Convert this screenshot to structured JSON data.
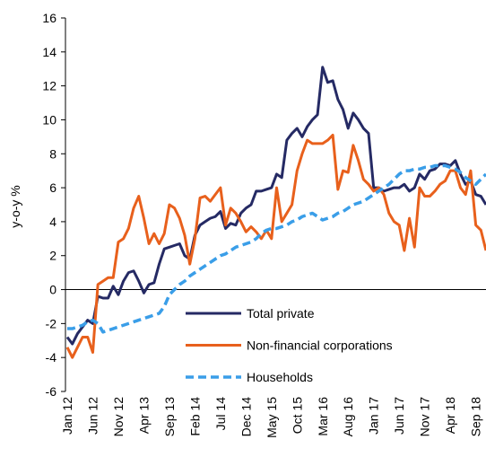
{
  "chart_data": {
    "type": "line",
    "y_label": "y-o-y %",
    "categories": [
      "Jan 12",
      null,
      null,
      null,
      null,
      "Jun 12",
      null,
      null,
      null,
      null,
      "Nov 12",
      null,
      null,
      null,
      null,
      "Apr 13",
      null,
      null,
      null,
      null,
      "Sep 13",
      null,
      null,
      null,
      null,
      "Feb 14",
      null,
      null,
      null,
      null,
      "Jul 14",
      null,
      null,
      null,
      null,
      "Dec 14",
      null,
      null,
      null,
      null,
      "May 15",
      null,
      null,
      null,
      null,
      "Oct 15",
      null,
      null,
      null,
      null,
      "Mar 16",
      null,
      null,
      null,
      null,
      "Aug 16",
      null,
      null,
      null,
      null,
      "Jan 17",
      null,
      null,
      null,
      null,
      "Jun 17",
      null,
      null,
      null,
      null,
      "Nov 17",
      null,
      null,
      null,
      null,
      "Apr 18",
      null,
      null,
      null,
      null,
      "Sep 18",
      null,
      null
    ],
    "series": [
      {
        "name": "Total private",
        "color": "#252a64",
        "dash": false,
        "values": [
          -2.8,
          -3.2,
          -2.6,
          -2.2,
          -1.8,
          -2.0,
          -0.4,
          -0.5,
          -0.5,
          0.2,
          -0.3,
          0.5,
          1.0,
          1.1,
          0.5,
          -0.2,
          0.3,
          0.4,
          1.5,
          2.4,
          2.5,
          2.6,
          2.7,
          2.0,
          1.8,
          3.2,
          3.8,
          4.0,
          4.2,
          4.3,
          4.6,
          3.6,
          3.9,
          3.8,
          4.5,
          4.8,
          5.0,
          5.8,
          5.8,
          5.9,
          6.0,
          6.8,
          6.6,
          8.8,
          9.2,
          9.5,
          9.0,
          9.6,
          10.0,
          10.3,
          13.1,
          12.2,
          12.3,
          11.2,
          10.6,
          9.5,
          10.4,
          10.0,
          9.5,
          9.2,
          6.0,
          6.0,
          5.8,
          5.9,
          6.0,
          6.0,
          6.2,
          5.8,
          6.0,
          6.8,
          6.5,
          7.0,
          7.1,
          7.4,
          7.4,
          7.3,
          7.6,
          6.8,
          6.2,
          6.4,
          5.6,
          5.5,
          5.0
        ]
      },
      {
        "name": "Non-financial corporations",
        "color": "#e8601c",
        "dash": false,
        "values": [
          -3.4,
          -4.0,
          -3.4,
          -2.8,
          -2.8,
          -3.7,
          0.3,
          0.5,
          0.7,
          0.7,
          2.8,
          3.0,
          3.6,
          4.8,
          5.5,
          4.2,
          2.7,
          3.3,
          2.7,
          3.3,
          5.0,
          4.8,
          4.2,
          3.2,
          1.5,
          3.0,
          5.4,
          5.5,
          5.2,
          5.6,
          6.0,
          3.8,
          4.8,
          4.5,
          4.0,
          3.4,
          3.7,
          3.4,
          3.0,
          3.5,
          3.0,
          6.0,
          4.0,
          4.5,
          5.0,
          7.0,
          8.0,
          8.8,
          8.6,
          8.6,
          8.6,
          8.8,
          9.1,
          5.9,
          7.0,
          6.9,
          8.5,
          7.6,
          6.5,
          6.2,
          5.8,
          6.0,
          5.6,
          4.5,
          4.0,
          3.8,
          2.3,
          4.2,
          2.5,
          6.0,
          5.5,
          5.5,
          5.8,
          6.2,
          6.4,
          7.0,
          7.0,
          6.0,
          5.6,
          7.0,
          3.8,
          3.5,
          2.3
        ]
      },
      {
        "name": "Households",
        "color": "#3a9ee8",
        "dash": true,
        "values": [
          -2.3,
          -2.3,
          -2.2,
          -2.1,
          -1.9,
          -1.8,
          -2.0,
          -2.5,
          -2.4,
          -2.3,
          -2.2,
          -2.1,
          -2.0,
          -1.9,
          -1.8,
          -1.7,
          -1.6,
          -1.5,
          -1.4,
          -1.0,
          -0.3,
          0.0,
          0.3,
          0.5,
          0.8,
          1.0,
          1.2,
          1.4,
          1.6,
          1.8,
          2.0,
          2.1,
          2.3,
          2.5,
          2.6,
          2.7,
          2.8,
          3.0,
          3.3,
          3.5,
          3.6,
          3.6,
          3.7,
          3.8,
          4.0,
          4.1,
          4.3,
          4.4,
          4.5,
          4.3,
          4.1,
          4.2,
          4.3,
          4.5,
          4.6,
          4.8,
          5.0,
          5.1,
          5.2,
          5.4,
          5.6,
          5.8,
          6.0,
          6.2,
          6.5,
          6.8,
          7.0,
          7.0,
          7.1,
          7.1,
          7.2,
          7.2,
          7.3,
          7.3,
          7.3,
          7.2,
          7.1,
          6.9,
          6.6,
          6.4,
          6.2,
          6.5,
          6.8
        ]
      }
    ],
    "ylim": [
      -6,
      16
    ],
    "yticks": [
      -6,
      -4,
      -2,
      0,
      2,
      4,
      6,
      8,
      10,
      12,
      14,
      16
    ],
    "legend": "lower center"
  }
}
